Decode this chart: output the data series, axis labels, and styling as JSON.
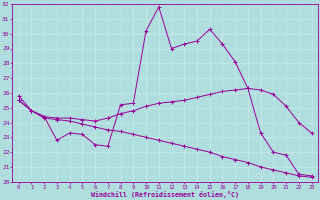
{
  "xlabel": "Windchill (Refroidissement éolien,°C)",
  "xlim": [
    -0.5,
    23.5
  ],
  "ylim": [
    20,
    32
  ],
  "xticks": [
    0,
    1,
    2,
    3,
    4,
    5,
    6,
    7,
    8,
    9,
    10,
    11,
    12,
    13,
    14,
    15,
    16,
    17,
    18,
    19,
    20,
    21,
    22,
    23
  ],
  "yticks": [
    20,
    21,
    22,
    23,
    24,
    25,
    26,
    27,
    28,
    29,
    30,
    31,
    32
  ],
  "bg_color": "#b0dede",
  "line_color": "#990099",
  "grid_color": "#d0f0f0",
  "lines": [
    {
      "x": [
        0,
        1,
        2,
        3,
        4,
        5,
        6,
        7,
        8,
        9,
        10,
        11,
        12,
        13,
        14,
        15,
        16,
        17,
        18,
        19,
        20,
        21,
        22,
        23
      ],
      "y": [
        25.8,
        24.8,
        24.4,
        22.8,
        23.3,
        23.2,
        22.5,
        22.4,
        25.2,
        25.3,
        30.2,
        31.8,
        29.0,
        29.3,
        29.5,
        30.3,
        29.3,
        28.1,
        26.3,
        23.3,
        22.0,
        21.8,
        20.5,
        20.4
      ]
    },
    {
      "x": [
        0,
        1,
        2,
        3,
        4,
        5,
        6,
        7,
        8,
        9,
        10,
        11,
        12,
        13,
        14,
        15,
        16,
        17,
        18,
        19,
        20,
        21,
        22,
        23
      ],
      "y": [
        25.5,
        24.8,
        24.4,
        24.3,
        24.3,
        24.2,
        24.1,
        24.3,
        24.6,
        24.8,
        25.1,
        25.3,
        25.4,
        25.5,
        25.7,
        25.9,
        26.1,
        26.2,
        26.3,
        26.2,
        25.9,
        25.1,
        24.0,
        23.3
      ]
    },
    {
      "x": [
        0,
        1,
        2,
        3,
        4,
        5,
        6,
        7,
        8,
        9,
        10,
        11,
        12,
        13,
        14,
        15,
        16,
        17,
        18,
        19,
        20,
        21,
        22,
        23
      ],
      "y": [
        25.5,
        24.8,
        24.3,
        24.2,
        24.1,
        23.9,
        23.7,
        23.5,
        23.4,
        23.2,
        23.0,
        22.8,
        22.6,
        22.4,
        22.2,
        22.0,
        21.7,
        21.5,
        21.3,
        21.0,
        20.8,
        20.6,
        20.4,
        20.3
      ]
    }
  ]
}
